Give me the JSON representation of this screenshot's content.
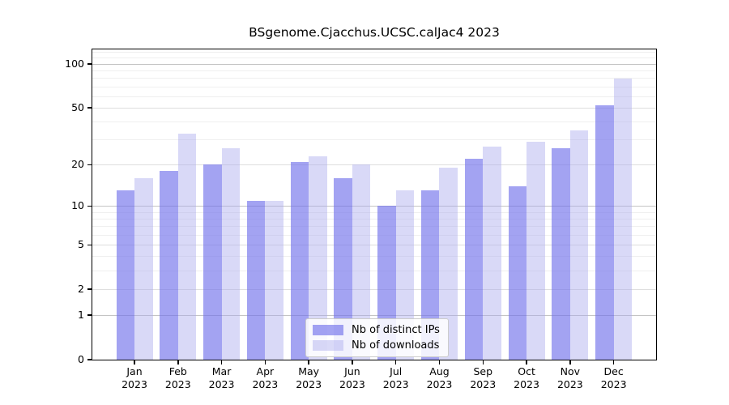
{
  "title": "BSgenome.Cjacchus.UCSC.calJac4 2023",
  "chart_data": {
    "type": "bar",
    "title": "BSgenome.Cjacchus.UCSC.calJac4 2023",
    "scale": "log10(1+x)",
    "categories": [
      "Jan",
      "Feb",
      "Mar",
      "Apr",
      "May",
      "Jun",
      "Jul",
      "Aug",
      "Sep",
      "Oct",
      "Nov",
      "Dec"
    ],
    "year": "2023",
    "series": [
      {
        "name": "Nb of distinct IPs",
        "values": [
          13,
          18,
          20,
          11,
          21,
          16,
          10,
          13,
          22,
          14,
          26,
          52
        ],
        "color": "rgba(113,113,235,0.65)"
      },
      {
        "name": "Nb of downloads",
        "values": [
          16,
          33,
          26,
          11,
          23,
          20,
          13,
          19,
          27,
          29,
          35,
          80
        ],
        "color": "rgba(171,171,237,0.45)"
      }
    ],
    "xlabel": "",
    "ylabel": "",
    "ylim": [
      0,
      125
    ],
    "y_ticks": [
      0,
      1,
      2,
      5,
      10,
      20,
      50,
      100
    ],
    "grid": true,
    "legend_position": "lower center",
    "colors": {
      "distinct_ips_bar": "#a3a3f2",
      "downloads_bar": "#d9d9f7",
      "grid_decade": "#c4c4c4",
      "grid_major": "#dedede",
      "grid_minor": "#efefef",
      "frame": "#000000"
    }
  }
}
